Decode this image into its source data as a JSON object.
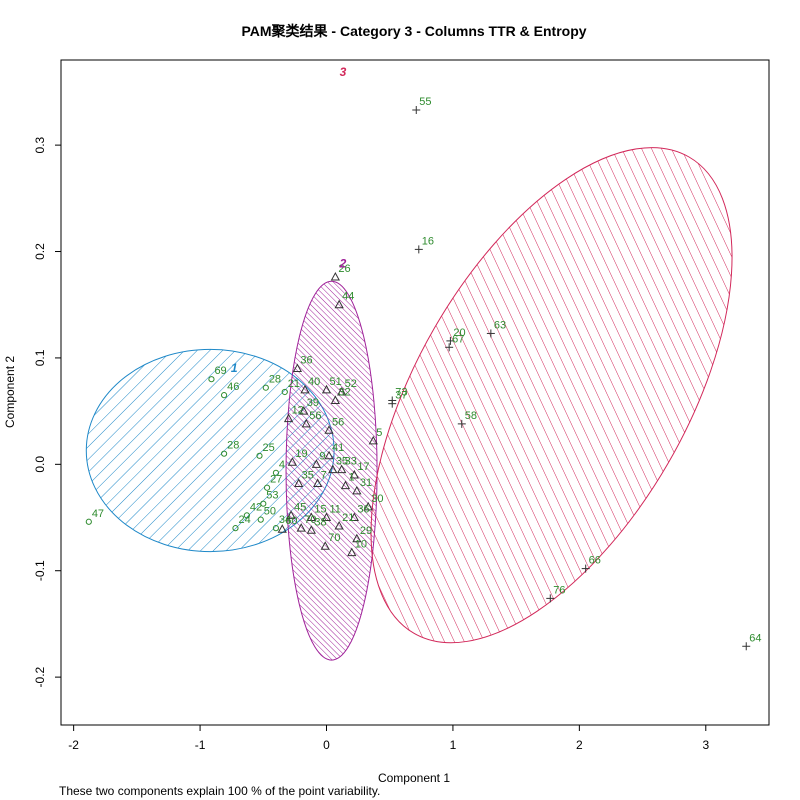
{
  "chart_data": {
    "type": "scatter",
    "title": "PAM聚类结果 - Category  3  - Columns  TTR  &  Entropy",
    "xlabel": "Component 1",
    "ylabel": "Component 2",
    "caption": "These two components explain 100 % of the point variability.",
    "xlim": [
      -2.1,
      3.5
    ],
    "ylim": [
      -0.245,
      0.38
    ],
    "xticks": [
      -2,
      -1,
      0,
      1,
      2,
      3
    ],
    "yticks": [
      -0.2,
      -0.1,
      0.0,
      0.1,
      0.2,
      0.3
    ],
    "xtick_labels": [
      "-2",
      "-1",
      "0",
      "1",
      "2",
      "3"
    ],
    "ytick_labels": [
      "-0.2",
      "-0.1",
      "0.0",
      "0.1",
      "0.2",
      "0.3"
    ],
    "label_color": "#2e8b2e",
    "clusters": [
      {
        "id": "1",
        "label": "1",
        "color": "#1e88c8",
        "marker": "circle",
        "ellipse": {
          "cx": -0.92,
          "cy": 0.013,
          "rx": 0.98,
          "ry": 0.095,
          "angle_deg": 0
        },
        "label_pos": {
          "x": -0.73,
          "y": 0.087
        },
        "hatch_angle": 45,
        "points": [
          {
            "label": "69",
            "x": -0.91,
            "y": 0.08
          },
          {
            "label": "46",
            "x": -0.81,
            "y": 0.065
          },
          {
            "label": "28",
            "x": -0.48,
            "y": 0.072
          },
          {
            "label": "21",
            "x": -0.33,
            "y": 0.068
          },
          {
            "label": "28",
            "x": -0.81,
            "y": 0.01
          },
          {
            "label": "25",
            "x": -0.53,
            "y": 0.008
          },
          {
            "label": "4",
            "x": -0.4,
            "y": -0.008
          },
          {
            "label": "27",
            "x": -0.47,
            "y": -0.022
          },
          {
            "label": "53",
            "x": -0.5,
            "y": -0.037
          },
          {
            "label": "42",
            "x": -0.63,
            "y": -0.048
          },
          {
            "label": "50",
            "x": -0.52,
            "y": -0.052
          },
          {
            "label": "24",
            "x": -0.72,
            "y": -0.06
          },
          {
            "label": "34",
            "x": -0.4,
            "y": -0.06
          },
          {
            "label": "47",
            "x": -1.88,
            "y": -0.054
          }
        ]
      },
      {
        "id": "2",
        "label": "2",
        "color": "#a0229a",
        "marker": "triangle",
        "ellipse": {
          "cx": 0.04,
          "cy": -0.006,
          "rx": 0.36,
          "ry": 0.178,
          "angle_deg": 0
        },
        "label_pos": {
          "x": 0.13,
          "y": 0.185
        },
        "hatch_angle": -45,
        "points": [
          {
            "label": "26",
            "x": 0.07,
            "y": 0.176
          },
          {
            "label": "44",
            "x": 0.1,
            "y": 0.15
          },
          {
            "label": "36",
            "x": -0.23,
            "y": 0.09
          },
          {
            "label": "40",
            "x": -0.17,
            "y": 0.07
          },
          {
            "label": "51",
            "x": 0.0,
            "y": 0.07
          },
          {
            "label": "52",
            "x": 0.12,
            "y": 0.068
          },
          {
            "label": "32",
            "x": 0.07,
            "y": 0.06
          },
          {
            "label": "39",
            "x": -0.18,
            "y": 0.05
          },
          {
            "label": "12",
            "x": -0.3,
            "y": 0.043
          },
          {
            "label": "56",
            "x": -0.16,
            "y": 0.038
          },
          {
            "label": "56",
            "x": 0.02,
            "y": 0.032
          },
          {
            "label": "5",
            "x": 0.37,
            "y": 0.022
          },
          {
            "label": "19",
            "x": -0.27,
            "y": 0.002
          },
          {
            "label": "41",
            "x": 0.02,
            "y": 0.008
          },
          {
            "label": "9",
            "x": -0.08,
            "y": 0.0
          },
          {
            "label": "35",
            "x": 0.05,
            "y": -0.005
          },
          {
            "label": "33",
            "x": 0.12,
            "y": -0.005
          },
          {
            "label": "17",
            "x": 0.22,
            "y": -0.01
          },
          {
            "label": "35",
            "x": -0.22,
            "y": -0.018
          },
          {
            "label": "7",
            "x": -0.07,
            "y": -0.018
          },
          {
            "label": "1",
            "x": 0.15,
            "y": -0.02
          },
          {
            "label": "31",
            "x": 0.24,
            "y": -0.025
          },
          {
            "label": "30",
            "x": 0.33,
            "y": -0.04
          },
          {
            "label": "45",
            "x": -0.28,
            "y": -0.048
          },
          {
            "label": "15",
            "x": -0.12,
            "y": -0.05
          },
          {
            "label": "11",
            "x": 0.0,
            "y": -0.05
          },
          {
            "label": "36",
            "x": 0.22,
            "y": -0.05
          },
          {
            "label": "21",
            "x": 0.1,
            "y": -0.058
          },
          {
            "label": "70",
            "x": -0.2,
            "y": -0.06
          },
          {
            "label": "38",
            "x": -0.12,
            "y": -0.062
          },
          {
            "label": "29",
            "x": 0.24,
            "y": -0.07
          },
          {
            "label": "70",
            "x": -0.01,
            "y": -0.077
          },
          {
            "label": "10",
            "x": 0.2,
            "y": -0.083
          },
          {
            "label": "60",
            "x": -0.35,
            "y": -0.061
          }
        ]
      },
      {
        "id": "3",
        "label": "3",
        "color": "#d2285a",
        "marker": "plus",
        "ellipse": {
          "cx": 1.78,
          "cy": 0.065,
          "rx": 2.0,
          "ry": 0.27,
          "angle_deg": -60
        },
        "label_pos": {
          "x": 0.13,
          "y": 0.365
        },
        "hatch_angle": 35,
        "points": [
          {
            "label": "55",
            "x": 0.71,
            "y": 0.333
          },
          {
            "label": "16",
            "x": 0.73,
            "y": 0.202
          },
          {
            "label": "20",
            "x": 0.98,
            "y": 0.116
          },
          {
            "label": "67",
            "x": 0.97,
            "y": 0.11
          },
          {
            "label": "63",
            "x": 1.3,
            "y": 0.123
          },
          {
            "label": "73",
            "x": 0.52,
            "y": 0.06
          },
          {
            "label": "37",
            "x": 0.52,
            "y": 0.057
          },
          {
            "label": "58",
            "x": 1.07,
            "y": 0.038
          },
          {
            "label": "66",
            "x": 2.05,
            "y": -0.098
          },
          {
            "label": "76",
            "x": 1.77,
            "y": -0.126
          },
          {
            "label": "64",
            "x": 3.32,
            "y": -0.171
          }
        ]
      }
    ]
  }
}
